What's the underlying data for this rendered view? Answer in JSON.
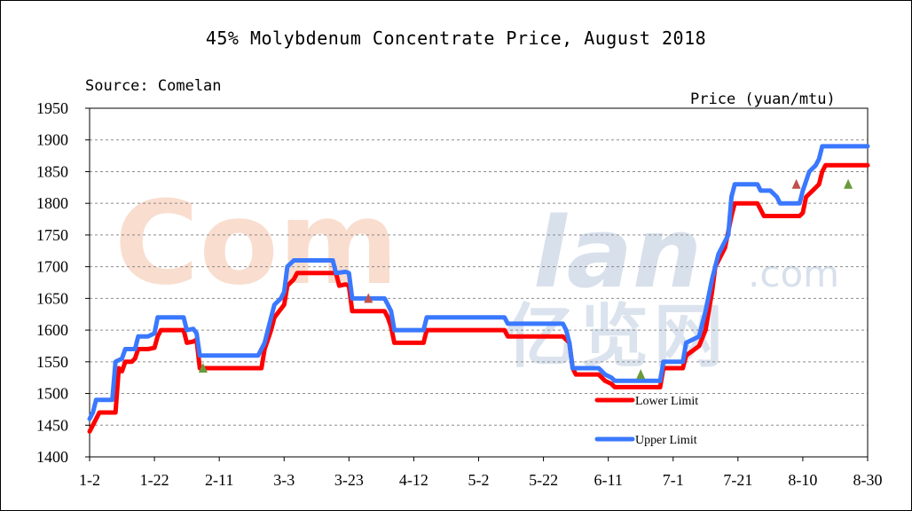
{
  "chart_data": {
    "type": "line",
    "title": "45% Molybdenum Concentrate Price, August 2018",
    "source": "Source: Comelan",
    "ylabel": "Price (yuan/mtu)",
    "xlabel": "",
    "ylim": [
      1400,
      1950
    ],
    "yticks": [
      1400,
      1450,
      1500,
      1550,
      1600,
      1650,
      1700,
      1750,
      1800,
      1850,
      1900,
      1950
    ],
    "xticks": [
      "1-2",
      "1-22",
      "2-11",
      "3-3",
      "3-23",
      "4-12",
      "5-2",
      "5-22",
      "6-11",
      "7-1",
      "7-21",
      "8-10",
      "8-30"
    ],
    "grid": "horizontal-dashed",
    "legend_position": "bottom-right",
    "watermark": {
      "latin_com": "Com",
      "latin_lan": "lan",
      "dotcom": ".com",
      "cn": "亿览网"
    },
    "x_range_days": [
      0,
      240
    ],
    "series": [
      {
        "name": "Lower Limit",
        "color": "#ff0000",
        "points": [
          [
            0,
            1440
          ],
          [
            1,
            1450
          ],
          [
            3,
            1470
          ],
          [
            7,
            1470
          ],
          [
            8,
            1470
          ],
          [
            9,
            1540
          ],
          [
            10,
            1535
          ],
          [
            11,
            1550
          ],
          [
            13,
            1550
          ],
          [
            14,
            1555
          ],
          [
            15,
            1570
          ],
          [
            18,
            1570
          ],
          [
            20,
            1572
          ],
          [
            21,
            1590
          ],
          [
            22,
            1600
          ],
          [
            29,
            1600
          ],
          [
            30,
            1580
          ],
          [
            32,
            1582
          ],
          [
            33,
            1585
          ],
          [
            34,
            1540
          ],
          [
            50,
            1540
          ],
          [
            53,
            1540
          ],
          [
            54,
            1570
          ],
          [
            56,
            1600
          ],
          [
            57,
            1620
          ],
          [
            60,
            1640
          ],
          [
            61,
            1670
          ],
          [
            63,
            1680
          ],
          [
            64,
            1690
          ],
          [
            76,
            1690
          ],
          [
            77,
            1670
          ],
          [
            79,
            1672
          ],
          [
            80,
            1670
          ],
          [
            81,
            1630
          ],
          [
            91,
            1630
          ],
          [
            92,
            1620
          ],
          [
            93,
            1605
          ],
          [
            94,
            1580
          ],
          [
            103,
            1580
          ],
          [
            104,
            1600
          ],
          [
            128,
            1600
          ],
          [
            129,
            1590
          ],
          [
            146,
            1590
          ],
          [
            148,
            1580
          ],
          [
            149,
            1540
          ],
          [
            150,
            1530
          ],
          [
            157,
            1530
          ],
          [
            158,
            1525
          ],
          [
            159,
            1520
          ],
          [
            161,
            1515
          ],
          [
            162,
            1510
          ],
          [
            176,
            1510
          ],
          [
            177,
            1540
          ],
          [
            183,
            1540
          ],
          [
            184,
            1560
          ],
          [
            188,
            1575
          ],
          [
            190,
            1600
          ],
          [
            191,
            1630
          ],
          [
            192,
            1660
          ],
          [
            193,
            1700
          ],
          [
            196,
            1730
          ],
          [
            198,
            1780
          ],
          [
            199,
            1800
          ],
          [
            206,
            1800
          ],
          [
            207,
            1790
          ],
          [
            208,
            1780
          ],
          [
            219,
            1780
          ],
          [
            220,
            1785
          ],
          [
            221,
            1810
          ],
          [
            223,
            1820
          ],
          [
            225,
            1830
          ],
          [
            226,
            1850
          ],
          [
            227,
            1860
          ],
          [
            240,
            1860
          ]
        ]
      },
      {
        "name": "Upper Limit",
        "color": "#3a78ff",
        "points": [
          [
            0,
            1460
          ],
          [
            1,
            1470
          ],
          [
            2,
            1490
          ],
          [
            7,
            1490
          ],
          [
            8,
            1550
          ],
          [
            10,
            1555
          ],
          [
            11,
            1570
          ],
          [
            14,
            1570
          ],
          [
            15,
            1590
          ],
          [
            18,
            1590
          ],
          [
            20,
            1595
          ],
          [
            21,
            1620
          ],
          [
            29,
            1620
          ],
          [
            30,
            1600
          ],
          [
            32,
            1602
          ],
          [
            33,
            1595
          ],
          [
            34,
            1560
          ],
          [
            50,
            1560
          ],
          [
            52,
            1560
          ],
          [
            54,
            1580
          ],
          [
            56,
            1620
          ],
          [
            57,
            1640
          ],
          [
            59,
            1650
          ],
          [
            60,
            1660
          ],
          [
            61,
            1700
          ],
          [
            63,
            1710
          ],
          [
            75,
            1710
          ],
          [
            76,
            1690
          ],
          [
            79,
            1692
          ],
          [
            80,
            1690
          ],
          [
            81,
            1650
          ],
          [
            91,
            1650
          ],
          [
            92,
            1640
          ],
          [
            93,
            1630
          ],
          [
            94,
            1600
          ],
          [
            103,
            1600
          ],
          [
            104,
            1620
          ],
          [
            128,
            1620
          ],
          [
            129,
            1610
          ],
          [
            146,
            1610
          ],
          [
            147,
            1600
          ],
          [
            148,
            1580
          ],
          [
            149,
            1540
          ],
          [
            157,
            1540
          ],
          [
            158,
            1535
          ],
          [
            159,
            1530
          ],
          [
            161,
            1525
          ],
          [
            162,
            1520
          ],
          [
            176,
            1520
          ],
          [
            177,
            1550
          ],
          [
            183,
            1550
          ],
          [
            184,
            1580
          ],
          [
            188,
            1590
          ],
          [
            190,
            1630
          ],
          [
            192,
            1680
          ],
          [
            194,
            1720
          ],
          [
            197,
            1750
          ],
          [
            198,
            1810
          ],
          [
            199,
            1830
          ],
          [
            206,
            1830
          ],
          [
            207,
            1820
          ],
          [
            210,
            1820
          ],
          [
            212,
            1810
          ],
          [
            213,
            1800
          ],
          [
            219,
            1800
          ],
          [
            220,
            1820
          ],
          [
            221,
            1835
          ],
          [
            222,
            1850
          ],
          [
            224,
            1860
          ],
          [
            225,
            1870
          ],
          [
            226,
            1890
          ],
          [
            240,
            1890
          ]
        ]
      }
    ],
    "markers": [
      {
        "series": "Lower Limit",
        "day": 35,
        "value": 1540,
        "color": "#6a9a3a"
      },
      {
        "series": "Lower Limit",
        "day": 86,
        "value": 1650,
        "color": "#c0504d"
      },
      {
        "series": "Lower Limit",
        "day": 170,
        "value": 1530,
        "color": "#6a9a3a"
      },
      {
        "series": "Lower Limit",
        "day": 218,
        "value": 1830,
        "color": "#c0504d"
      },
      {
        "series": "Lower Limit",
        "day": 234,
        "value": 1830,
        "color": "#6a9a3a"
      }
    ]
  }
}
